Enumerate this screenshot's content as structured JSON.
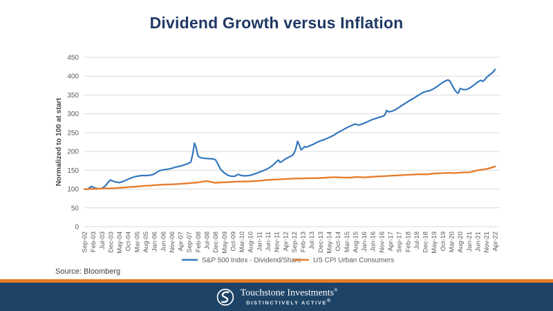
{
  "slide": {
    "title": "Dividend Growth versus Inflation",
    "source": "Source: Bloomberg",
    "footer": {
      "brand": "Touchstone Investments",
      "tagline": "DISTINCTIVELY ACTIVE",
      "reg_mark": "®"
    }
  },
  "colors": {
    "title_navy": "#1F3864",
    "footer_navy": "#1D4466",
    "divider_orange": "#E87E27",
    "gridline": "#D9D9D9",
    "axis_text": "#595959",
    "sp500_blue": "#3377BD",
    "cpi_orange": "#E87D2D"
  },
  "chart_data": {
    "type": "line",
    "title": "Dividend Growth versus Inflation",
    "xlabel": "",
    "ylabel": "Normalized to 100 at start",
    "ylim": [
      0,
      450
    ],
    "ytick_step": 50,
    "ytick_labels": [
      "0",
      "50",
      "100",
      "150",
      "200",
      "250",
      "300",
      "350",
      "400",
      "450"
    ],
    "grid": "horizontal",
    "legend_position": "bottom",
    "x_unit": "monthly, Sep-2002 to Apr-2022; ticks every 5 months",
    "x_tick_labels": [
      "Sep-02",
      "Feb-03",
      "Jul-03",
      "Dec-03",
      "May-04",
      "Oct-04",
      "Mar-05",
      "Aug-05",
      "Jan-06",
      "Jun-06",
      "Nov-06",
      "Apr-07",
      "Sep-07",
      "Feb-08",
      "Jul-08",
      "Dec-08",
      "May-09",
      "Oct-09",
      "Mar-10",
      "Aug-10",
      "Jan-11",
      "Jun-11",
      "Nov-11",
      "Apr-12",
      "Sep-12",
      "Feb-13",
      "Jul-13",
      "Dec-13",
      "May-14",
      "Oct-14",
      "Mar-15",
      "Aug-15",
      "Jan-16",
      "Jun-16",
      "Nov-16",
      "Apr-17",
      "Sep-17",
      "Feb-18",
      "Jul-18",
      "Dec-18",
      "May-19",
      "Oct-19",
      "Mar-20",
      "Aug-20",
      "Jan-21",
      "Jun-21",
      "Nov-21",
      "Apr-22"
    ],
    "series": [
      {
        "name": "S&P 500 Index - Dividend/Share",
        "color": "#3377BD",
        "values_at_ticks": [
          100,
          105,
          102,
          124,
          117,
          126,
          134,
          136,
          139,
          151,
          155,
          161,
          169,
          188,
          181,
          178,
          143,
          134,
          136,
          137,
          145,
          155,
          173,
          180,
          195,
          208,
          217,
          228,
          237,
          250,
          263,
          273,
          275,
          285,
          293,
          306,
          317,
          332,
          346,
          359,
          367,
          384,
          380,
          367,
          368,
          384,
          396,
          418
        ],
        "path_points": [
          [
            0,
            100
          ],
          [
            2,
            100
          ],
          [
            4,
            107
          ],
          [
            6,
            103
          ],
          [
            8,
            101
          ],
          [
            10,
            102
          ],
          [
            12,
            108
          ],
          [
            14,
            120
          ],
          [
            15,
            124
          ],
          [
            17,
            120
          ],
          [
            20,
            117
          ],
          [
            22,
            120
          ],
          [
            25,
            126
          ],
          [
            27,
            130
          ],
          [
            30,
            134
          ],
          [
            33,
            136
          ],
          [
            36,
            136
          ],
          [
            39,
            138
          ],
          [
            41,
            143
          ],
          [
            43,
            149
          ],
          [
            45,
            151
          ],
          [
            48,
            153
          ],
          [
            50,
            155
          ],
          [
            52,
            158
          ],
          [
            55,
            161
          ],
          [
            57,
            164
          ],
          [
            59,
            167
          ],
          [
            61,
            172
          ],
          [
            62,
            193
          ],
          [
            63,
            222
          ],
          [
            64,
            210
          ],
          [
            65,
            188
          ],
          [
            66,
            184
          ],
          [
            68,
            182
          ],
          [
            71,
            181
          ],
          [
            74,
            180
          ],
          [
            75,
            178
          ],
          [
            76,
            170
          ],
          [
            78,
            152
          ],
          [
            80,
            143
          ],
          [
            82,
            137
          ],
          [
            84,
            134
          ],
          [
            86,
            134
          ],
          [
            88,
            139
          ],
          [
            90,
            136
          ],
          [
            92,
            135
          ],
          [
            94,
            136
          ],
          [
            96,
            138
          ],
          [
            98,
            141
          ],
          [
            100,
            145
          ],
          [
            102,
            148
          ],
          [
            104,
            152
          ],
          [
            106,
            157
          ],
          [
            108,
            164
          ],
          [
            110,
            173
          ],
          [
            111,
            177
          ],
          [
            112,
            171
          ],
          [
            113,
            173
          ],
          [
            115,
            180
          ],
          [
            117,
            185
          ],
          [
            119,
            189
          ],
          [
            120,
            195
          ],
          [
            121,
            207
          ],
          [
            122,
            227
          ],
          [
            123,
            217
          ],
          [
            124,
            204
          ],
          [
            125,
            208
          ],
          [
            126,
            213
          ],
          [
            127,
            211
          ],
          [
            129,
            215
          ],
          [
            131,
            219
          ],
          [
            133,
            224
          ],
          [
            135,
            228
          ],
          [
            137,
            231
          ],
          [
            139,
            235
          ],
          [
            141,
            239
          ],
          [
            143,
            244
          ],
          [
            145,
            250
          ],
          [
            147,
            255
          ],
          [
            149,
            260
          ],
          [
            151,
            265
          ],
          [
            153,
            269
          ],
          [
            155,
            273
          ],
          [
            157,
            270
          ],
          [
            159,
            273
          ],
          [
            161,
            277
          ],
          [
            163,
            281
          ],
          [
            165,
            285
          ],
          [
            167,
            288
          ],
          [
            169,
            291
          ],
          [
            171,
            294
          ],
          [
            172,
            297
          ],
          [
            173,
            309
          ],
          [
            174,
            305
          ],
          [
            176,
            307
          ],
          [
            178,
            311
          ],
          [
            180,
            317
          ],
          [
            182,
            323
          ],
          [
            184,
            329
          ],
          [
            186,
            335
          ],
          [
            188,
            340
          ],
          [
            190,
            346
          ],
          [
            192,
            352
          ],
          [
            194,
            357
          ],
          [
            196,
            360
          ],
          [
            198,
            362
          ],
          [
            200,
            367
          ],
          [
            202,
            373
          ],
          [
            204,
            380
          ],
          [
            206,
            386
          ],
          [
            208,
            390
          ],
          [
            209,
            388
          ],
          [
            210,
            380
          ],
          [
            211,
            371
          ],
          [
            212,
            363
          ],
          [
            213,
            357
          ],
          [
            214,
            355
          ],
          [
            215,
            367
          ],
          [
            216,
            366
          ],
          [
            217,
            364
          ],
          [
            219,
            365
          ],
          [
            221,
            370
          ],
          [
            223,
            377
          ],
          [
            225,
            384
          ],
          [
            226,
            387
          ],
          [
            227,
            389
          ],
          [
            228,
            386
          ],
          [
            229,
            390
          ],
          [
            230,
            396
          ],
          [
            232,
            404
          ],
          [
            233,
            407
          ],
          [
            234,
            412
          ],
          [
            235,
            418
          ]
        ]
      },
      {
        "name": "US CPI Urban Consumers",
        "color": "#E87D2D",
        "values_at_ticks": [
          100,
          100.5,
          101.5,
          102,
          103,
          105.5,
          106.5,
          109,
          110,
          112,
          112.5,
          114,
          115.5,
          117.5,
          121.5,
          116.5,
          118,
          119,
          120,
          121,
          122,
          125,
          125,
          127,
          128,
          128,
          129,
          129,
          131,
          131,
          130,
          132,
          131,
          133,
          133,
          135,
          136,
          138,
          139,
          139,
          141,
          142,
          143,
          144,
          145,
          150,
          154,
          160
        ],
        "path_points": [
          [
            0,
            100
          ],
          [
            3,
            100
          ],
          [
            6,
            100.5
          ],
          [
            10,
            101.5
          ],
          [
            14,
            101.5
          ],
          [
            18,
            102.5
          ],
          [
            22,
            104
          ],
          [
            26,
            105.5
          ],
          [
            30,
            106.5
          ],
          [
            34,
            108.5
          ],
          [
            38,
            109.5
          ],
          [
            42,
            111
          ],
          [
            46,
            112
          ],
          [
            50,
            112.5
          ],
          [
            54,
            113.5
          ],
          [
            58,
            115
          ],
          [
            62,
            116.5
          ],
          [
            65,
            117.5
          ],
          [
            68,
            120
          ],
          [
            70,
            121.5
          ],
          [
            72,
            119.5
          ],
          [
            75,
            116.5
          ],
          [
            78,
            117.5
          ],
          [
            82,
            118.5
          ],
          [
            86,
            119.5
          ],
          [
            90,
            120
          ],
          [
            95,
            120.5
          ],
          [
            100,
            122
          ],
          [
            104,
            124
          ],
          [
            108,
            125
          ],
          [
            112,
            126
          ],
          [
            116,
            127
          ],
          [
            120,
            128
          ],
          [
            124,
            128
          ],
          [
            128,
            129
          ],
          [
            132,
            129
          ],
          [
            136,
            129.5
          ],
          [
            140,
            131
          ],
          [
            144,
            131.5
          ],
          [
            148,
            130.5
          ],
          [
            152,
            130.5
          ],
          [
            156,
            132
          ],
          [
            160,
            131
          ],
          [
            164,
            132.5
          ],
          [
            168,
            133.5
          ],
          [
            172,
            134.5
          ],
          [
            176,
            135.5
          ],
          [
            180,
            136.5
          ],
          [
            184,
            137.5
          ],
          [
            188,
            138.5
          ],
          [
            192,
            139.5
          ],
          [
            196,
            139
          ],
          [
            200,
            141.5
          ],
          [
            204,
            142
          ],
          [
            208,
            143
          ],
          [
            212,
            142.5
          ],
          [
            216,
            144
          ],
          [
            220,
            144.5
          ],
          [
            222,
            146
          ],
          [
            225,
            150
          ],
          [
            228,
            151.5
          ],
          [
            230,
            153.5
          ],
          [
            232,
            155.5
          ],
          [
            235,
            160
          ]
        ]
      }
    ]
  }
}
